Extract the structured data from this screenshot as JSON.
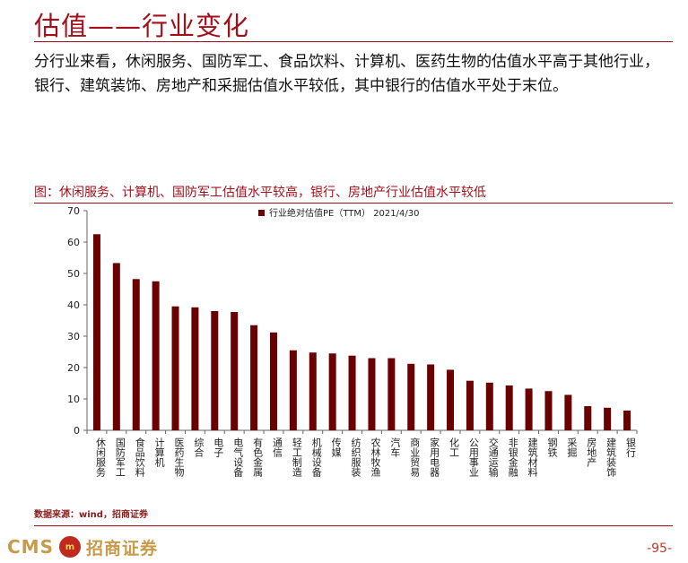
{
  "header": {
    "title": "估值——行业变化"
  },
  "body_text": "分行业来看，休闲服务、国防军工、食品饮料、计算机、医药生物的估值水平高于其他行业，银行、建筑装饰、房地产和采掘估值水平较低，其中银行的估值水平处于末位。",
  "figure": {
    "caption": "图：休闲服务、计算机、国防军工估值水平较高，银行、房地产行业估值水平较低",
    "source": "数据来源：wind，招商证券"
  },
  "chart_data": {
    "type": "bar",
    "categories": [
      "休闲服务",
      "国防军工",
      "食品饮料",
      "计算机",
      "医药生物",
      "综合",
      "电子",
      "电气设备",
      "有色金属",
      "通信",
      "轻工制造",
      "机械设备",
      "传媒",
      "纺织服装",
      "农林牧渔",
      "汽车",
      "商业贸易",
      "家用电器",
      "化工",
      "公用事业",
      "交通运输",
      "非银金融",
      "建筑材料",
      "钢铁",
      "采掘",
      "房地产",
      "建筑装饰",
      "银行"
    ],
    "series": [
      {
        "name": "行业绝对估值PE（TTM） 2021/4/30",
        "values": [
          62.5,
          53.3,
          48.2,
          47.5,
          39.5,
          39.2,
          38.0,
          37.7,
          33.5,
          31.2,
          25.5,
          24.8,
          24.5,
          23.8,
          23.0,
          23.0,
          21.2,
          21.0,
          19.3,
          15.8,
          15.2,
          14.3,
          13.3,
          12.5,
          11.3,
          7.7,
          7.2,
          6.3
        ]
      }
    ],
    "ylim": [
      0,
      70
    ],
    "yticks": [
      0,
      10,
      20,
      30,
      40,
      50,
      60,
      70
    ],
    "grid": false,
    "legend": "top-center",
    "bar_color": "#6b0000"
  },
  "footer": {
    "logo_latin": "CMS",
    "logo_cn": "招商证券",
    "page_number": "-95-"
  }
}
